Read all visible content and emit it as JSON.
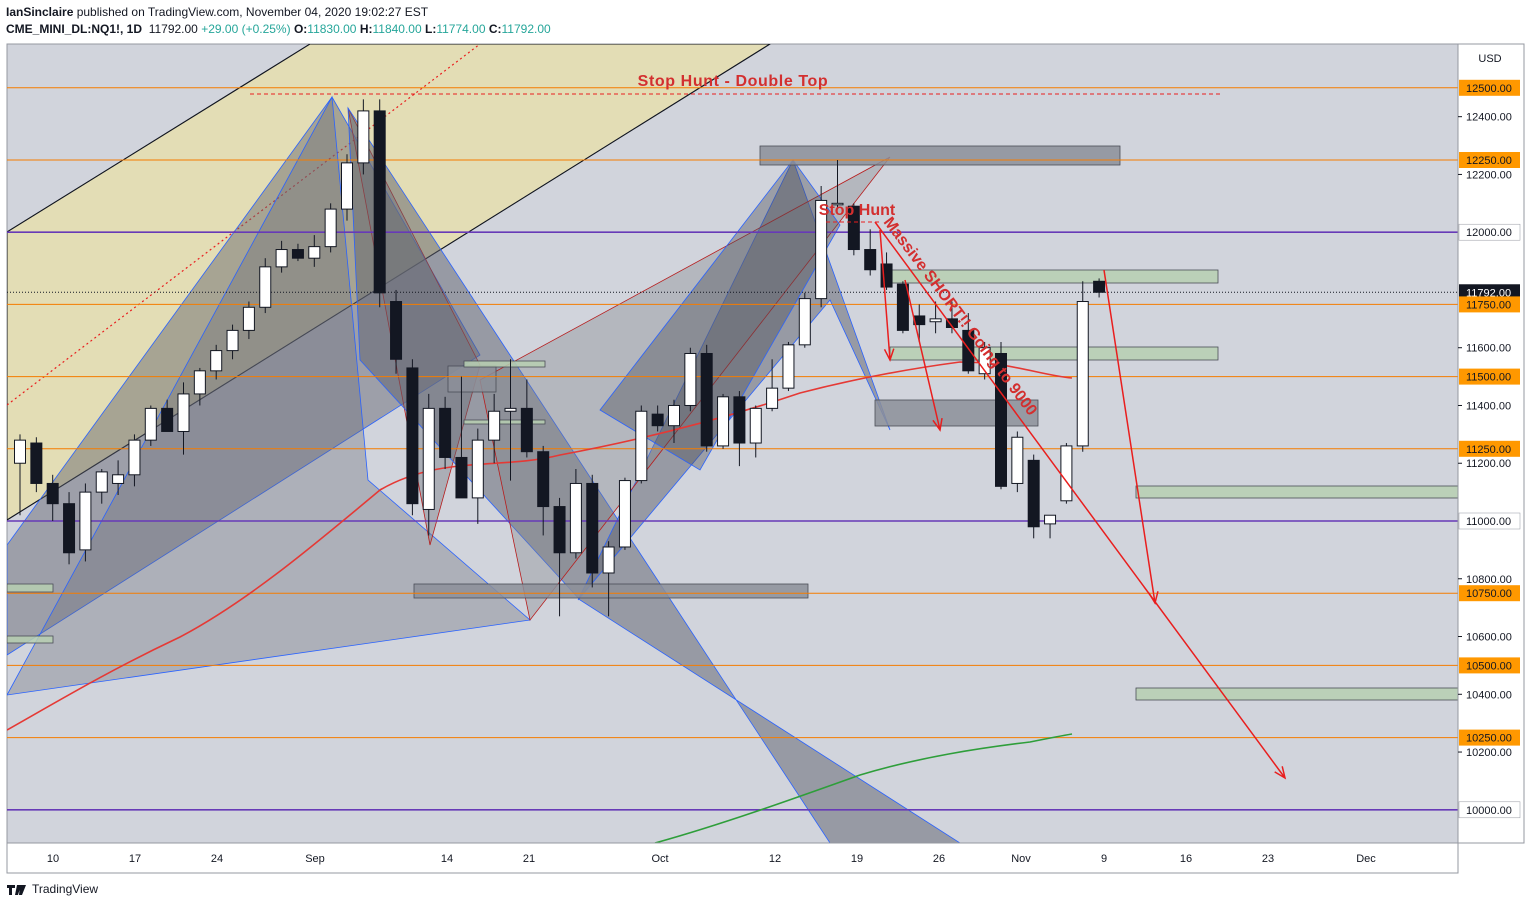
{
  "header": {
    "publisher": "IanSinclaire",
    "published_text": " published on TradingView.com, November 04, 2020 19:02:27 EST",
    "symbol": "CME_MINI_DL:NQ1!, 1D",
    "last": "11792.00",
    "change": "+29.00 (+0.25%)",
    "o_label": "O:",
    "o_val": "11830.00",
    "h_label": "H:",
    "h_val": "11840.00",
    "l_label": "L:",
    "l_val": "11774.00",
    "c_label": "C:",
    "c_val": "11792.00"
  },
  "footer": {
    "brand": "TradingView"
  },
  "currency": "USD",
  "colors": {
    "bg": "#d1d4dc",
    "orange": "#f57c00",
    "purple": "#673ab7",
    "red": "#e91e1e",
    "green_ma": "#2e9e3a",
    "zone_green": "#b7cfb2",
    "tick_label_bg": "#ff9800"
  },
  "chart_data": {
    "type": "candlestick",
    "title": "",
    "x_ticks": [
      "10",
      "17",
      "24",
      "Sep",
      "14",
      "21",
      "Oct",
      "12",
      "19",
      "26",
      "Nov",
      "9",
      "16",
      "23",
      "Dec"
    ],
    "y_ticks": [
      10200,
      10400,
      10600,
      10800,
      11200,
      11400,
      11600,
      12200,
      12400
    ],
    "ylim": [
      9880,
      12560
    ],
    "horizontal_levels": [
      {
        "price": 12500,
        "label": "12500.00",
        "color": "orange"
      },
      {
        "price": 12250,
        "label": "12250.00",
        "color": "orange"
      },
      {
        "price": 12000,
        "label": "12000.00",
        "color": "purple"
      },
      {
        "price": 11792,
        "label": "11792.00",
        "color": "black"
      },
      {
        "price": 11750,
        "label": "11750.00",
        "color": "orange"
      },
      {
        "price": 11500,
        "label": "11500.00",
        "color": "orange"
      },
      {
        "price": 11250,
        "label": "11250.00",
        "color": "orange"
      },
      {
        "price": 11000,
        "label": "11000.00",
        "color": "purple"
      },
      {
        "price": 10750,
        "label": "10750.00",
        "color": "orange"
      },
      {
        "price": 10500,
        "label": "10500.00",
        "color": "orange"
      },
      {
        "price": 10250,
        "label": "10250.00",
        "color": "orange"
      },
      {
        "price": 10000,
        "label": "10000.00",
        "color": "purple"
      }
    ],
    "annotations": [
      {
        "text": "Stop Hunt - Double Top"
      },
      {
        "text": "Stop Hunt"
      },
      {
        "text": "Massive SHORT!! Going to 9000"
      }
    ],
    "candles": [
      {
        "o": 11200,
        "h": 11300,
        "l": 11020,
        "c": 11280
      },
      {
        "o": 11270,
        "h": 11290,
        "l": 11100,
        "c": 11130
      },
      {
        "o": 11130,
        "h": 11160,
        "l": 11000,
        "c": 11060
      },
      {
        "o": 11060,
        "h": 11100,
        "l": 10850,
        "c": 10890
      },
      {
        "o": 10900,
        "h": 11130,
        "l": 10860,
        "c": 11100
      },
      {
        "o": 11100,
        "h": 11180,
        "l": 11060,
        "c": 11170
      },
      {
        "o": 11130,
        "h": 11210,
        "l": 11090,
        "c": 11160
      },
      {
        "o": 11160,
        "h": 11300,
        "l": 11120,
        "c": 11280
      },
      {
        "o": 11280,
        "h": 11400,
        "l": 11260,
        "c": 11390
      },
      {
        "o": 11390,
        "h": 11420,
        "l": 11310,
        "c": 11310
      },
      {
        "o": 11310,
        "h": 11480,
        "l": 11230,
        "c": 11440
      },
      {
        "o": 11440,
        "h": 11530,
        "l": 11400,
        "c": 11520
      },
      {
        "o": 11520,
        "h": 11610,
        "l": 11490,
        "c": 11590
      },
      {
        "o": 11590,
        "h": 11680,
        "l": 11560,
        "c": 11660
      },
      {
        "o": 11660,
        "h": 11760,
        "l": 11630,
        "c": 11740
      },
      {
        "o": 11740,
        "h": 11910,
        "l": 11720,
        "c": 11880
      },
      {
        "o": 11880,
        "h": 11970,
        "l": 11860,
        "c": 11940
      },
      {
        "o": 11940,
        "h": 11960,
        "l": 11900,
        "c": 11910
      },
      {
        "o": 11910,
        "h": 11990,
        "l": 11880,
        "c": 11950
      },
      {
        "o": 11950,
        "h": 12100,
        "l": 11930,
        "c": 12080
      },
      {
        "o": 12080,
        "h": 12270,
        "l": 12040,
        "c": 12240
      },
      {
        "o": 12240,
        "h": 12460,
        "l": 12200,
        "c": 12420
      },
      {
        "o": 12420,
        "h": 12460,
        "l": 11740,
        "c": 11790
      },
      {
        "o": 11760,
        "h": 11800,
        "l": 11510,
        "c": 11560
      },
      {
        "o": 11530,
        "h": 11560,
        "l": 11020,
        "c": 11060
      },
      {
        "o": 11040,
        "h": 11440,
        "l": 10950,
        "c": 11390
      },
      {
        "o": 11390,
        "h": 11430,
        "l": 11180,
        "c": 11220
      },
      {
        "o": 11220,
        "h": 11500,
        "l": 11080,
        "c": 11080
      },
      {
        "o": 11080,
        "h": 11320,
        "l": 10990,
        "c": 11280
      },
      {
        "o": 11280,
        "h": 11440,
        "l": 11200,
        "c": 11380
      },
      {
        "o": 11380,
        "h": 11560,
        "l": 11140,
        "c": 11390
      },
      {
        "o": 11390,
        "h": 11490,
        "l": 11220,
        "c": 11240
      },
      {
        "o": 11240,
        "h": 11260,
        "l": 10950,
        "c": 11050
      },
      {
        "o": 11050,
        "h": 11080,
        "l": 10670,
        "c": 10890
      },
      {
        "o": 10890,
        "h": 11180,
        "l": 10870,
        "c": 11130
      },
      {
        "o": 11130,
        "h": 11160,
        "l": 10770,
        "c": 10820
      },
      {
        "o": 10820,
        "h": 10930,
        "l": 10670,
        "c": 10910
      },
      {
        "o": 10910,
        "h": 11150,
        "l": 10900,
        "c": 11140
      },
      {
        "o": 11140,
        "h": 11400,
        "l": 11130,
        "c": 11380
      },
      {
        "o": 11370,
        "h": 11400,
        "l": 11310,
        "c": 11330
      },
      {
        "o": 11330,
        "h": 11420,
        "l": 11270,
        "c": 11400
      },
      {
        "o": 11400,
        "h": 11600,
        "l": 11380,
        "c": 11580
      },
      {
        "o": 11580,
        "h": 11610,
        "l": 11240,
        "c": 11260
      },
      {
        "o": 11260,
        "h": 11440,
        "l": 11250,
        "c": 11430
      },
      {
        "o": 11430,
        "h": 11450,
        "l": 11190,
        "c": 11270
      },
      {
        "o": 11270,
        "h": 11400,
        "l": 11220,
        "c": 11390
      },
      {
        "o": 11390,
        "h": 11560,
        "l": 11380,
        "c": 11460
      },
      {
        "o": 11460,
        "h": 11620,
        "l": 11450,
        "c": 11610
      },
      {
        "o": 11610,
        "h": 11790,
        "l": 11600,
        "c": 11770
      },
      {
        "o": 11770,
        "h": 12160,
        "l": 11740,
        "c": 12110
      },
      {
        "o": 12100,
        "h": 12250,
        "l": 12080,
        "c": 12100
      },
      {
        "o": 12090,
        "h": 12100,
        "l": 11920,
        "c": 11940
      },
      {
        "o": 11940,
        "h": 12010,
        "l": 11850,
        "c": 11870
      },
      {
        "o": 11890,
        "h": 11930,
        "l": 11800,
        "c": 11810
      },
      {
        "o": 11820,
        "h": 11830,
        "l": 11650,
        "c": 11660
      },
      {
        "o": 11710,
        "h": 11750,
        "l": 11620,
        "c": 11680
      },
      {
        "o": 11690,
        "h": 11760,
        "l": 11650,
        "c": 11700
      },
      {
        "o": 11700,
        "h": 11760,
        "l": 11650,
        "c": 11670
      },
      {
        "o": 11660,
        "h": 11720,
        "l": 11510,
        "c": 11520
      },
      {
        "o": 11510,
        "h": 11620,
        "l": 11490,
        "c": 11600
      },
      {
        "o": 11580,
        "h": 11620,
        "l": 11110,
        "c": 11120
      },
      {
        "o": 11130,
        "h": 11310,
        "l": 11100,
        "c": 11290
      },
      {
        "o": 11210,
        "h": 11230,
        "l": 10940,
        "c": 10980
      },
      {
        "o": 10990,
        "h": 11020,
        "l": 10940,
        "c": 11020
      },
      {
        "o": 11070,
        "h": 11270,
        "l": 11060,
        "c": 11260
      },
      {
        "o": 11260,
        "h": 11830,
        "l": 11240,
        "c": 11760
      },
      {
        "o": 11830,
        "h": 11840,
        "l": 11774,
        "c": 11792
      }
    ]
  }
}
